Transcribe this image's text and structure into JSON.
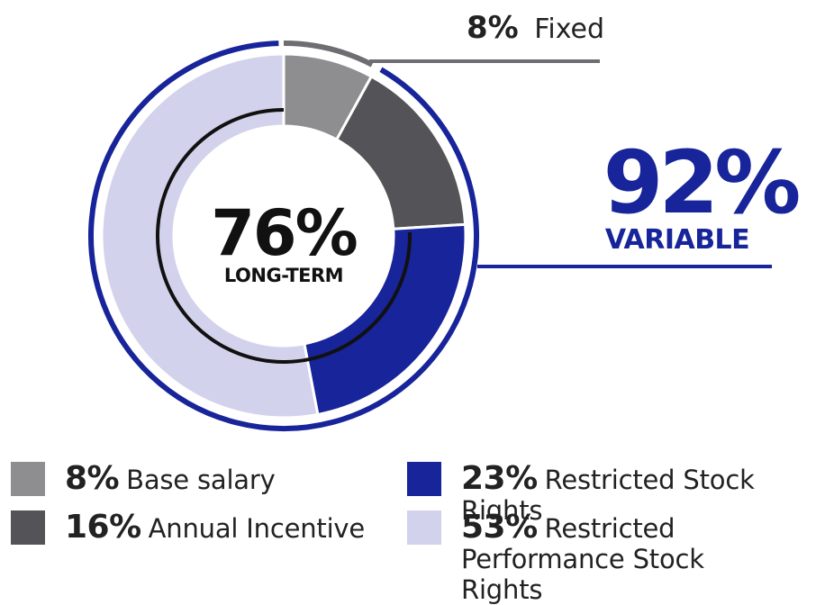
{
  "chart_data": {
    "type": "pie",
    "title": "",
    "center": {
      "value": "76%",
      "label": "LONG-TERM"
    },
    "slices": [
      {
        "name": "Base salary",
        "value": 8,
        "label": "8%",
        "color": "#8e8e91"
      },
      {
        "name": "Annual Incentive",
        "value": 16,
        "label": "16%",
        "color": "#545458"
      },
      {
        "name": "Restricted Stock Rights",
        "value": 23,
        "label": "23%",
        "color": "#17249a"
      },
      {
        "name": "Restricted Performance Stock Rights",
        "value": 53,
        "label": "53%",
        "color": "#d3d2ec"
      }
    ],
    "callouts": {
      "fixed": {
        "value": "8%",
        "label": "Fixed",
        "color": "#6d6d72"
      },
      "variable": {
        "value": "92%",
        "label": "VARIABLE",
        "color": "#17249a"
      }
    },
    "long_term_share": 76,
    "fixed_share": 8,
    "variable_share": 92
  },
  "legend": {
    "items": [
      {
        "pct": "8%",
        "label": "Base salary",
        "color": "#8e8e91"
      },
      {
        "pct": "16%",
        "label": "Annual Incentive",
        "color": "#545458"
      },
      {
        "pct": "23%",
        "label": "Restricted Stock Rights",
        "color": "#17249a"
      },
      {
        "pct": "53%",
        "label": "Restricted Performance Stock Rights",
        "color": "#d3d2ec"
      }
    ]
  }
}
